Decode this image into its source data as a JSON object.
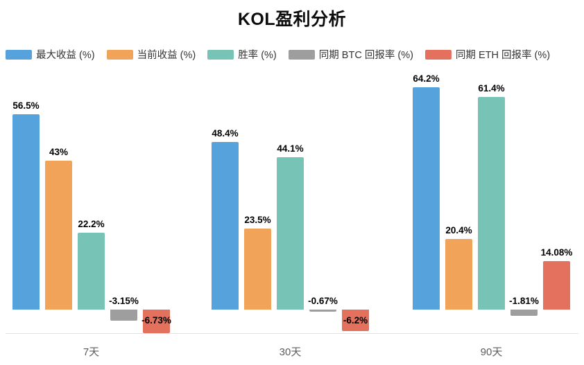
{
  "page": {
    "background": "#ffffff"
  },
  "chart_data": {
    "type": "bar",
    "title": "KOL盈利分析",
    "categories": [
      "7天",
      "30天",
      "90天"
    ],
    "series": [
      {
        "key": "max-return",
        "name": "最大收益 (%)",
        "color": "#55a2dc",
        "values": [
          56.5,
          48.4,
          64.2
        ],
        "labels": [
          "56.5%",
          "48.4%",
          "64.2%"
        ]
      },
      {
        "key": "current-return",
        "name": "当前收益 (%)",
        "color": "#f0a359",
        "values": [
          43,
          23.5,
          20.4
        ],
        "labels": [
          "43%",
          "23.5%",
          "20.4%"
        ]
      },
      {
        "key": "win-rate",
        "name": "胜率 (%)",
        "color": "#77c4b7",
        "values": [
          22.2,
          44.1,
          61.4
        ],
        "labels": [
          "22.2%",
          "44.1%",
          "61.4%"
        ]
      },
      {
        "key": "btc-return",
        "name": "同期 BTC 回报率 (%)",
        "color": "#9e9e9e",
        "values": [
          -3.15,
          -0.67,
          -1.81
        ],
        "labels": [
          "-3.15%",
          "-0.67%",
          "-1.81%"
        ]
      },
      {
        "key": "eth-return",
        "name": "同期 ETH 回报率 (%)",
        "color": "#e4705e",
        "values": [
          -6.73,
          -6.2,
          14.08
        ],
        "labels": [
          "-6.73%",
          "-6.2%",
          "14.08%"
        ]
      }
    ],
    "ylim": [
      -7,
      70
    ],
    "grid": false,
    "legend_position": "top",
    "value_labels": true,
    "baseline": 0
  }
}
